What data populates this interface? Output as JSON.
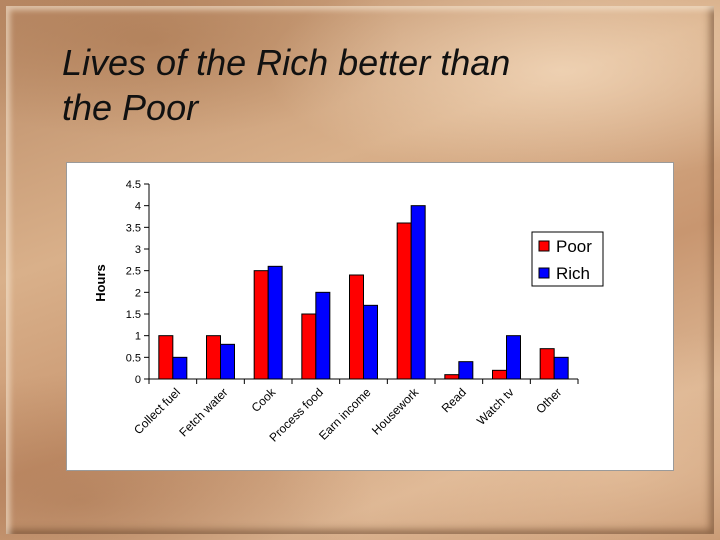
{
  "slide": {
    "title_line1": "Lives of the Rich better than",
    "title_line2": "the Poor"
  },
  "chart_data": {
    "type": "bar",
    "title": "",
    "xlabel": "",
    "ylabel": "Hours",
    "ylim": [
      0,
      4.5
    ],
    "yticks": [
      "0",
      "0.5",
      "1",
      "1.5",
      "2",
      "2.5",
      "3",
      "3.5",
      "4",
      "4.5"
    ],
    "categories": [
      "Collect fuel",
      "Fetch water",
      "Cook",
      "Process food",
      "Earn income",
      "Housework",
      "Read",
      "Watch tv",
      "Other"
    ],
    "series": [
      {
        "name": "Poor",
        "color": "#ff0000",
        "values": [
          1.0,
          1.0,
          2.5,
          1.5,
          2.4,
          3.6,
          0.1,
          0.2,
          0.7
        ]
      },
      {
        "name": "Rich",
        "color": "#0000ff",
        "values": [
          0.5,
          0.8,
          2.6,
          2.0,
          1.7,
          4.0,
          0.4,
          1.0,
          0.5
        ]
      }
    ],
    "legend_position": "right",
    "grid": false
  }
}
